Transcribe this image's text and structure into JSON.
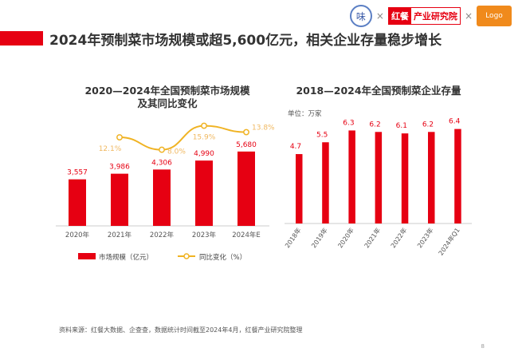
{
  "header": {
    "title": "2024年预制菜市场规模或超5,600亿元，相关企业存量稳步增长",
    "logo1": "味",
    "logo2a": "红餐",
    "logo2b": "产业研究院",
    "logo3": "Logo",
    "separator": "×"
  },
  "watermark": "红餐 产业研究院",
  "chart_data": [
    {
      "type": "bar+line",
      "title": "2020—2024年全国预制菜市场规模\n及其同比变化",
      "title_line1": "2020—2024年全国预制菜市场规模",
      "title_line2": "及其同比变化",
      "categories": [
        "2020年",
        "2021年",
        "2022年",
        "2023年",
        "2024年E"
      ],
      "series": [
        {
          "name": "市场规模（亿元）",
          "type": "bar",
          "values": [
            3557,
            3986,
            4306,
            4990,
            5680
          ],
          "labels": [
            "3,557",
            "3,986",
            "4,306",
            "4,990",
            "5,680"
          ],
          "color": "#e60012"
        },
        {
          "name": "同比变化（%）",
          "type": "line",
          "values": [
            null,
            12.1,
            8.0,
            15.9,
            13.8
          ],
          "labels": [
            "",
            "12.1%",
            "8.0%",
            "15.9%",
            "13.8%"
          ],
          "color": "#f0b323"
        }
      ],
      "legend": "bottom"
    },
    {
      "type": "bar",
      "title": "2018—2024年全国预制菜企业存量",
      "unit": "单位：万家",
      "categories": [
        "2018年",
        "2019年",
        "2020年",
        "2021年",
        "2022年",
        "2023年",
        "2024年Q1"
      ],
      "values": [
        4.7,
        5.5,
        6.3,
        6.2,
        6.1,
        6.2,
        6.4
      ],
      "labels": [
        "4.7",
        "5.5",
        "6.3",
        "6.2",
        "6.1",
        "6.2",
        "6.4"
      ],
      "color": "#e60012"
    }
  ],
  "footer": {
    "source": "资料来源：红餐大数据、企查查，数据统计时间截至2024年4月，红餐产业研究院整理",
    "page": "8"
  }
}
